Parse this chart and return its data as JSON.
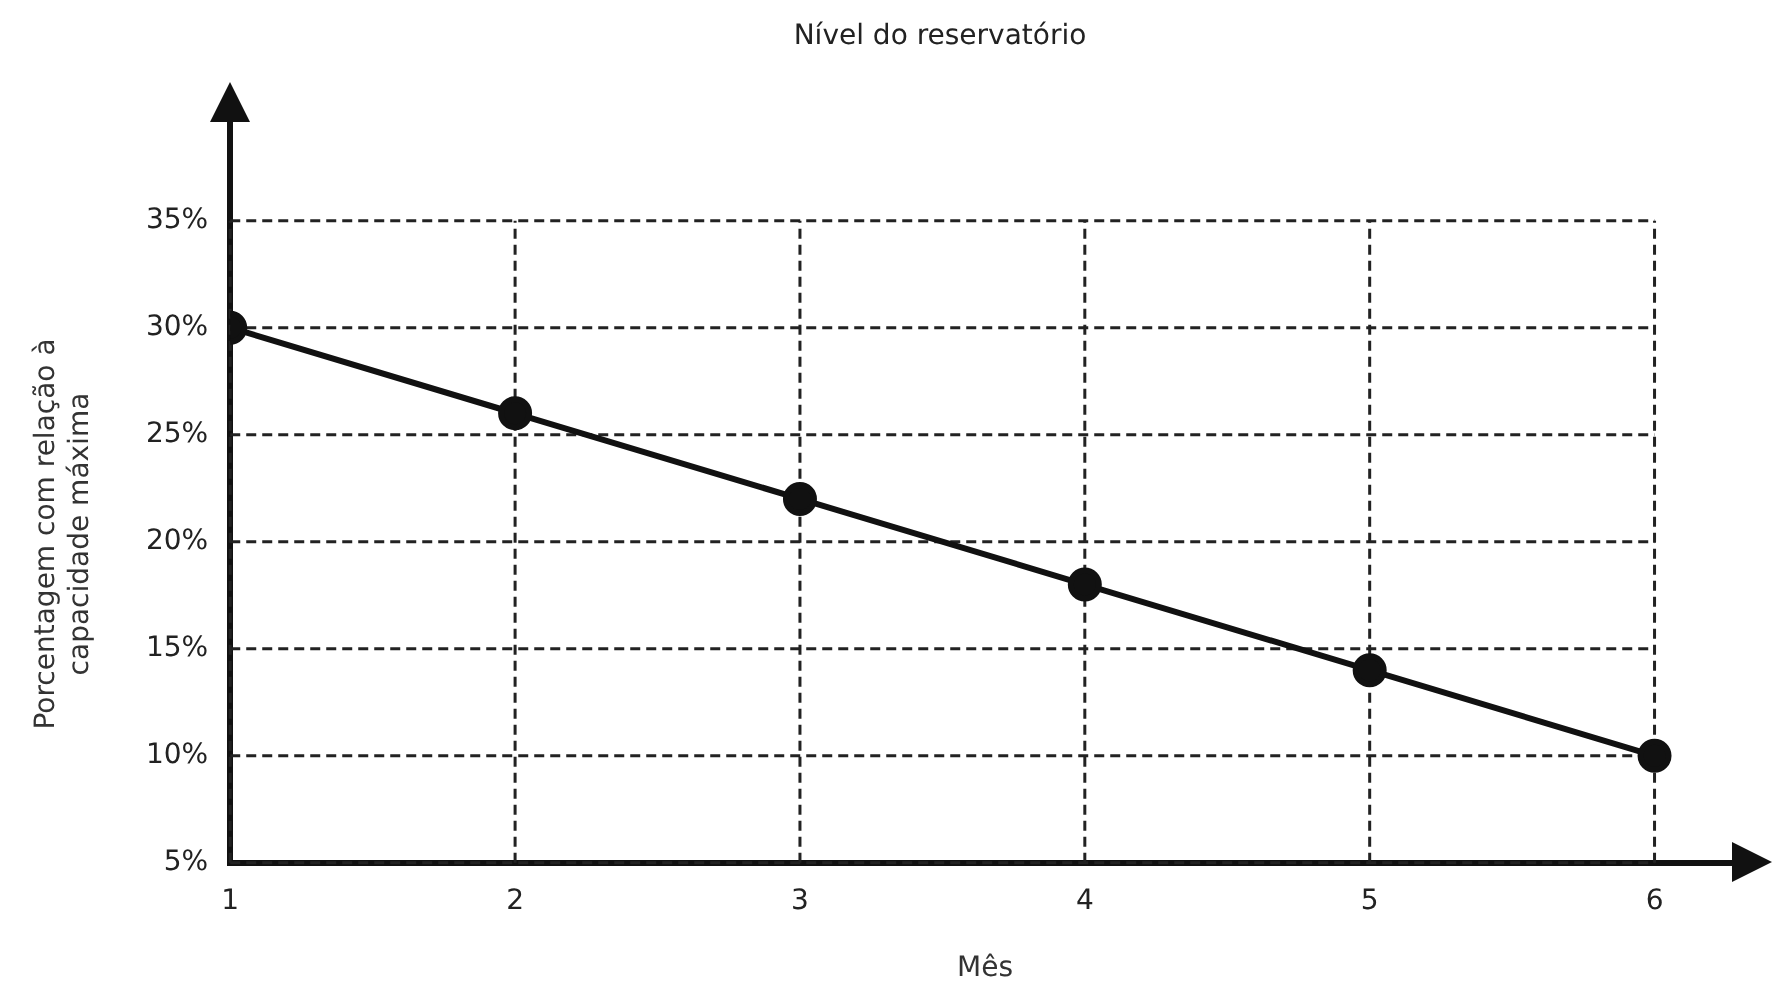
{
  "chart_data": {
    "type": "line",
    "title": "Nível do reservatório",
    "xlabel": "Mês",
    "ylabel": "Porcentagem com relação à capacidade máxima",
    "x": [
      1,
      2,
      3,
      4,
      5,
      6
    ],
    "series": [
      {
        "color": "#111111",
        "values": [
          30,
          26,
          22,
          18,
          14,
          10
        ]
      }
    ],
    "xlim": [
      1,
      6.3
    ],
    "ylim": [
      5,
      40
    ],
    "xticks": [
      1,
      2,
      3,
      4,
      5,
      6
    ],
    "yticks": [
      {
        "value": 5,
        "label": "5%"
      },
      {
        "value": 10,
        "label": "10%"
      },
      {
        "value": 15,
        "label": "15%"
      },
      {
        "value": 20,
        "label": "20%"
      },
      {
        "value": 25,
        "label": "25%"
      },
      {
        "value": 30,
        "label": "30%"
      },
      {
        "value": 35,
        "label": "35%"
      }
    ],
    "grid": true,
    "legend": false,
    "marker": "circle",
    "line_style": "solid"
  }
}
